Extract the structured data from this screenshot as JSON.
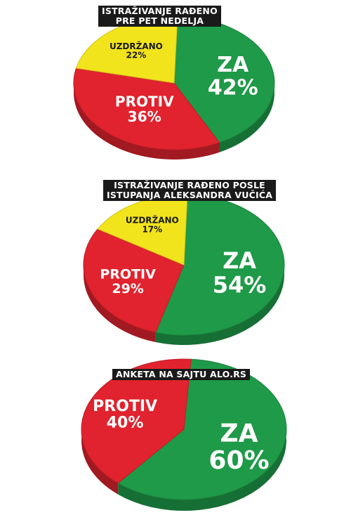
{
  "chart_data": [
    {
      "type": "pie",
      "title_lines": [
        "ISTRAŽIVANJE RAĐENO",
        "PRE PET NEDELJA"
      ],
      "slices": [
        {
          "label": "ZA",
          "value": 42,
          "display": "42%",
          "color": "#1f9a48"
        },
        {
          "label": "PROTIV",
          "value": 36,
          "display": "36%",
          "color": "#e0232e"
        },
        {
          "label": "UZDRŽANO",
          "value": 22,
          "display": "22%",
          "color": "#f2e41c"
        }
      ]
    },
    {
      "type": "pie",
      "title_lines": [
        "ISTRAŽIVANJE RAĐENO POSLE",
        "ISTUPANJA ALEKSANDRA VUČIĆA"
      ],
      "slices": [
        {
          "label": "ZA",
          "value": 54,
          "display": "54%",
          "color": "#1f9a48"
        },
        {
          "label": "PROTIV",
          "value": 29,
          "display": "29%",
          "color": "#e0232e"
        },
        {
          "label": "UZDRŽANO",
          "value": 17,
          "display": "17%",
          "color": "#f2e41c"
        }
      ]
    },
    {
      "type": "pie",
      "title_lines": [
        "ANKETA NA SAJTU ALO.RS"
      ],
      "slices": [
        {
          "label": "ZA",
          "value": 60,
          "display": "60%",
          "color": "#1f9a48"
        },
        {
          "label": "PROTIV",
          "value": 40,
          "display": "40%",
          "color": "#e0232e"
        }
      ]
    }
  ]
}
